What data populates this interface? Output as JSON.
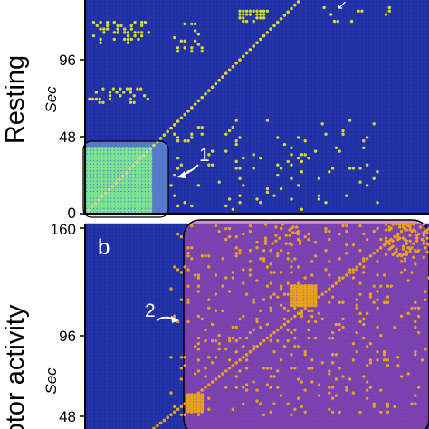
{
  "chart_data": [
    {
      "type": "heatmap",
      "panel": "",
      "ylabel": "Resting",
      "y_unit": "Sec",
      "xlim": [
        0,
        160
      ],
      "ylim": [
        0,
        160
      ],
      "yticks": [
        "0",
        "48",
        "96"
      ],
      "colors": {
        "background": "#1f2fa0",
        "marker": "#d6d838",
        "cluster_fill": "#5fe04a",
        "highlight": "#a8e8ff"
      },
      "highlight_region": {
        "x": [
          0,
          32
        ],
        "y": [
          0,
          32
        ],
        "label": "1"
      },
      "diagonal": true,
      "cluster_blocks": [
        {
          "x": [
            0,
            32
          ],
          "y": [
            0,
            32
          ]
        }
      ],
      "point_groups": [
        {
          "x": [
            2,
            30
          ],
          "y": [
            52,
            60
          ],
          "density": 0.35
        },
        {
          "x": [
            4,
            30
          ],
          "y": [
            80,
            90
          ],
          "density": 0.35
        },
        {
          "x": [
            2,
            14
          ],
          "y": [
            108,
            125
          ],
          "density": 0.2
        },
        {
          "x": [
            40,
            56
          ],
          "y": [
            76,
            90
          ],
          "density": 0.15
        },
        {
          "x": [
            72,
            86
          ],
          "y": [
            90,
            96
          ],
          "density": 0.6
        },
        {
          "x": [
            108,
            142
          ],
          "y": [
            90,
            110
          ],
          "density": 0.05
        },
        {
          "x": [
            40,
            140
          ],
          "y": [
            2,
            45
          ],
          "density": 0.05
        }
      ]
    },
    {
      "type": "heatmap",
      "panel": "b",
      "ylabel": "otor activity",
      "y_unit": "Sec",
      "xlim": [
        0,
        160
      ],
      "ylim": [
        0,
        160
      ],
      "yticks": [
        "48",
        "96",
        "160"
      ],
      "colors": {
        "background": "#1f2fa0",
        "marker": "#d6d838",
        "highlight": "#b44fb4",
        "highlight_marker": "#e8a020"
      },
      "highlight_region": {
        "x": [
          40,
          160
        ],
        "y": [
          34,
          160
        ],
        "label": "2"
      },
      "diagonal": true,
      "cluster_blocks": [
        {
          "x": [
            96,
            108
          ],
          "y": [
            104,
            116
          ]
        },
        {
          "x": [
            48,
            56
          ],
          "y": [
            42,
            52
          ]
        }
      ],
      "point_groups": [
        {
          "x": [
            40,
            160
          ],
          "y": [
            40,
            160
          ],
          "density": 0.08
        },
        {
          "x": [
            140,
            160
          ],
          "y": [
            132,
            160
          ],
          "density": 0.35
        },
        {
          "x": [
            84,
            100
          ],
          "y": [
            140,
            160
          ],
          "density": 0.2
        }
      ]
    }
  ]
}
